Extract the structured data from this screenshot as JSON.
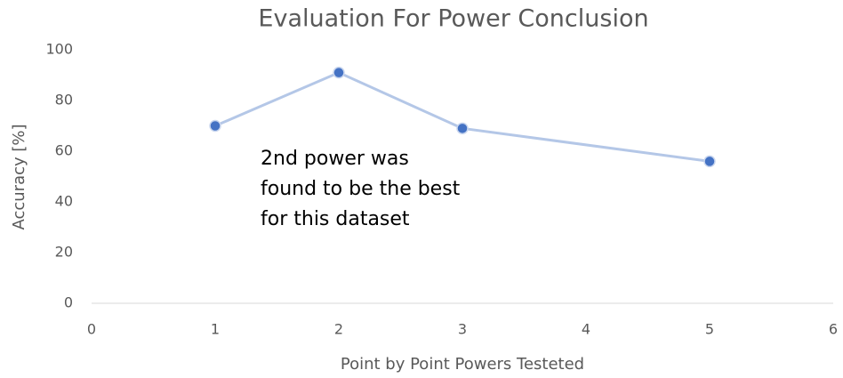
{
  "chart_data": {
    "type": "line",
    "title": "Evaluation For Power Conclusion",
    "x_label": "Point by Point Powers Testeted",
    "y_label": "Accuracy [%]",
    "x": [
      1,
      2,
      3,
      5
    ],
    "series": [
      {
        "name": "Accuracy",
        "color": "#b4c7e7",
        "marker_color": "#4472c4",
        "values": [
          70,
          91,
          69,
          56
        ]
      }
    ],
    "xlim": [
      0,
      6
    ],
    "xticks": [
      0,
      1,
      2,
      3,
      4,
      5,
      6
    ],
    "ylim": [
      0,
      100
    ],
    "yticks": [
      0,
      20,
      40,
      60,
      80,
      100
    ],
    "grid": false,
    "annotation": [
      "2nd power was",
      "found to be the best",
      "for this dataset"
    ]
  }
}
